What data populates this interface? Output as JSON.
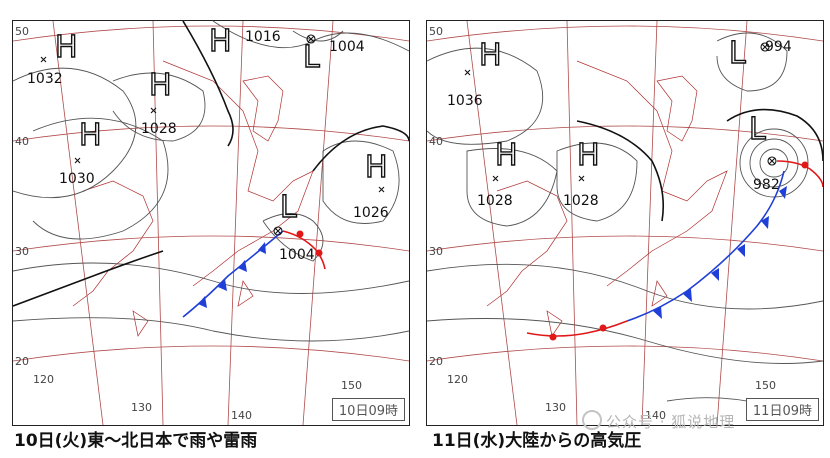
{
  "left_panel": {
    "valid_time": "10日09時",
    "caption": "10日(火)東～北日本で雨や雷雨",
    "pressure_systems": [
      {
        "type": "H",
        "value": "1032"
      },
      {
        "type": "H",
        "value": "1028"
      },
      {
        "type": "H",
        "value": "1030"
      },
      {
        "type": "H",
        "value": "1016"
      },
      {
        "type": "L",
        "value": "1004"
      },
      {
        "type": "L",
        "value": "1004"
      },
      {
        "type": "H",
        "value": "1026"
      }
    ],
    "grid_labels": [
      "50",
      "40",
      "30",
      "20",
      "120",
      "130",
      "140",
      "150"
    ]
  },
  "right_panel": {
    "valid_time": "11日09時",
    "caption": "11日(水)大陸からの高気圧",
    "pressure_systems": [
      {
        "type": "H",
        "value": "1036"
      },
      {
        "type": "H",
        "value": "1028"
      },
      {
        "type": "H",
        "value": "1028"
      },
      {
        "type": "L",
        "value": "994"
      },
      {
        "type": "L",
        "value": "982"
      }
    ],
    "grid_labels": [
      "50",
      "40",
      "30",
      "20",
      "120",
      "130",
      "140",
      "150"
    ]
  },
  "watermark": "公众号 · 狐说地理",
  "colors": {
    "isobar": "#555555",
    "grid": "#b04a4a",
    "coast": "#b03030",
    "cold_front": "#1f3fd8",
    "warm_front": "#e01818"
  }
}
